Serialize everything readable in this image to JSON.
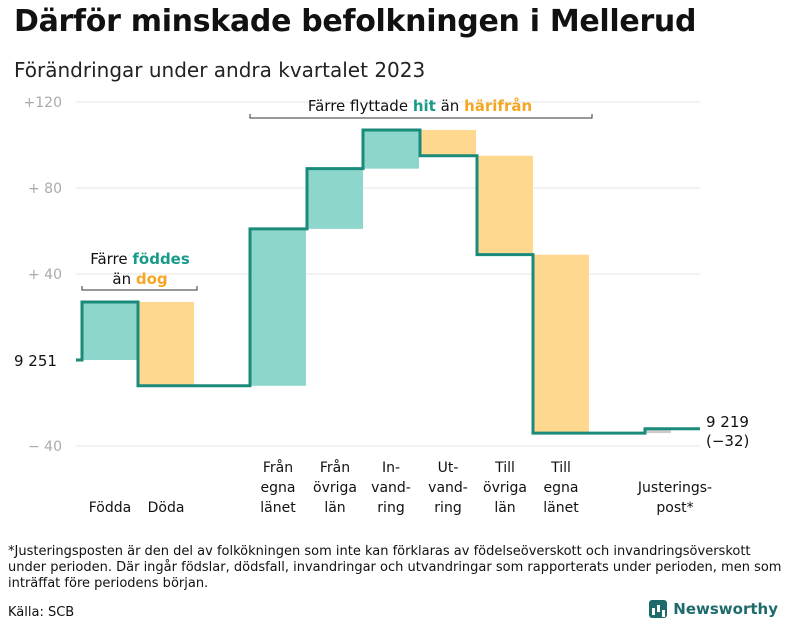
{
  "title": "Därför minskade befolkningen i Mellerud",
  "subtitle": "Förändringar under andra kvartalet 2023",
  "footnote": "*Justeringsposten är den del av folkökningen som inte kan förklaras av födelseöverskott och invandringsöverskott under perioden. Där ingår födslar, dödsfall, invandringar och utvandringar som rapporterats under perioden, men som inträffat före periodens början.",
  "source": "Källa: SCB",
  "brand": "Newsworthy",
  "colors": {
    "increase": "#8dd6cc",
    "decrease": "#fdd88e",
    "line": "#1a8a7a",
    "accent_teal": "#1a9b8a",
    "accent_orange": "#f5a623",
    "adjustment": "#cccccc",
    "axis_text": "#aaaaaa",
    "grid": "#e6e6e6"
  },
  "chart_data": {
    "type": "waterfall",
    "base_label": "9  251",
    "start_value": 9251,
    "end_label": "9 219",
    "end_change_label": "(−32)",
    "y_ticks": [
      {
        "value": 120,
        "label": "+120"
      },
      {
        "value": 80,
        "label": "+  80"
      },
      {
        "value": 40,
        "label": "+  40"
      },
      {
        "value": -40,
        "label": "−  40"
      }
    ],
    "ylim": [
      -40,
      120
    ],
    "steps": [
      {
        "label": [
          "Födda"
        ],
        "delta": 27,
        "kind": "increase"
      },
      {
        "label": [
          "Döda"
        ],
        "delta": -39,
        "kind": "decrease"
      },
      {
        "label": [
          "Från",
          "egna",
          "länet"
        ],
        "delta": 73,
        "kind": "increase"
      },
      {
        "label": [
          "Från",
          "övriga",
          "län"
        ],
        "delta": 28,
        "kind": "increase"
      },
      {
        "label": [
          "In-",
          "vand-",
          "ring"
        ],
        "delta": 18,
        "kind": "increase"
      },
      {
        "label": [
          "Ut-",
          "vand-",
          "ring"
        ],
        "delta": -12,
        "kind": "decrease"
      },
      {
        "label": [
          "Till",
          "övriga",
          "län"
        ],
        "delta": -46,
        "kind": "decrease"
      },
      {
        "label": [
          "Till",
          "egna",
          "länet"
        ],
        "delta": -83,
        "kind": "decrease"
      },
      {
        "label": [
          "Justerings-",
          "post*"
        ],
        "delta": 2,
        "kind": "adjustment"
      }
    ],
    "annotations": [
      {
        "lines": [
          [
            [
              "Färre ",
              "text"
            ],
            [
              "föddes",
              "teal"
            ]
          ],
          [
            [
              "än ",
              "text"
            ],
            [
              "dog",
              "orange"
            ]
          ]
        ],
        "covers": [
          0,
          1
        ]
      },
      {
        "lines": [
          [
            [
              "Färre flyttade ",
              "text"
            ],
            [
              "hit",
              "teal"
            ],
            [
              " än ",
              "text"
            ],
            [
              "härifrån",
              "orange"
            ]
          ]
        ],
        "covers": [
          2,
          7
        ]
      }
    ]
  }
}
